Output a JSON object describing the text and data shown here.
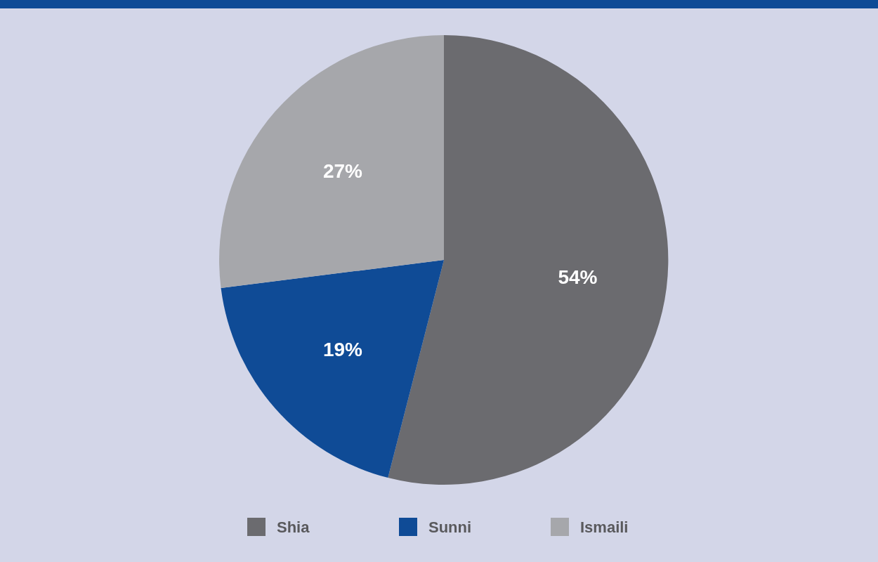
{
  "chart_data": {
    "type": "pie",
    "categories": [
      "Shia",
      "Sunni",
      "Ismaili"
    ],
    "values": [
      54,
      19,
      27
    ],
    "colors": [
      "#6b6b6f",
      "#0f4b96",
      "#a6a7ab"
    ],
    "value_labels": [
      "54%",
      "19%",
      "27%"
    ],
    "legend": "bottom"
  }
}
